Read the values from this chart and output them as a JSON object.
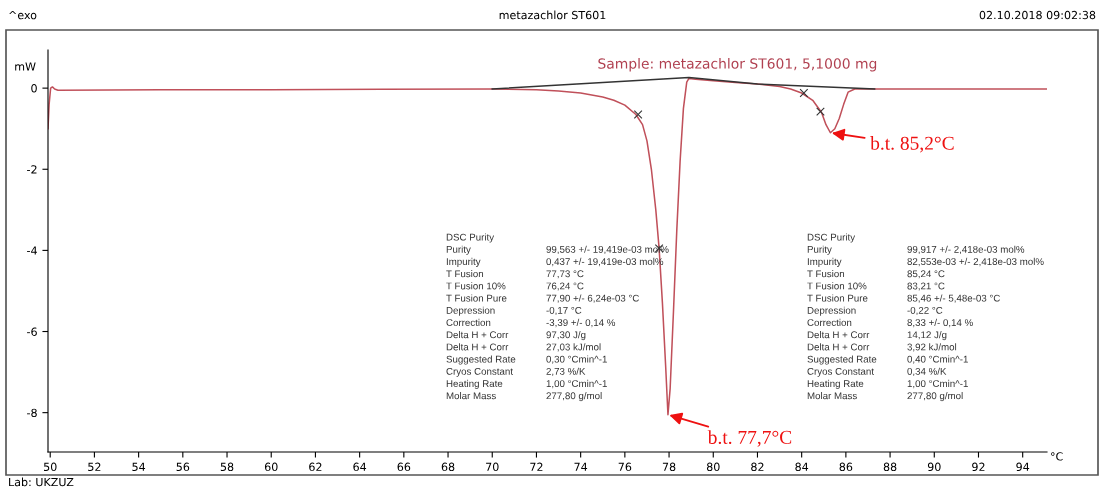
{
  "chart_data": {
    "type": "line",
    "title": "metazachlor ST601",
    "subtitle": "Sample: metazachlor ST601, 5,1000 mg",
    "xlabel": "°C",
    "ylabel": "mW",
    "xlim": [
      49.9,
      95.1
    ],
    "ylim": [
      -8.97,
      0.94
    ],
    "xticks": [
      50,
      52,
      54,
      56,
      58,
      60,
      62,
      64,
      66,
      68,
      70,
      72,
      74,
      76,
      78,
      80,
      82,
      84,
      86,
      88,
      90,
      92,
      94
    ],
    "yticks": [
      -8,
      -6,
      -4,
      -2,
      0
    ],
    "grid": false,
    "legend": false,
    "series": [
      {
        "color": "#c0505a",
        "line_style": "solid",
        "marker": "none",
        "x": [
          49.9,
          49.95,
          50.02,
          50.1,
          50.2,
          50.35,
          55,
          60,
          65,
          70,
          72,
          73,
          74,
          75,
          75.5,
          76,
          76.5,
          76.8,
          77.0,
          77.2,
          77.4,
          77.55,
          77.7,
          77.85,
          77.95,
          78.05,
          78.2,
          78.35,
          78.5,
          78.65,
          78.8,
          78.9,
          79.2,
          80,
          81,
          82,
          83,
          83.5,
          84,
          84.5,
          84.9,
          85.1,
          85.3,
          85.5,
          85.7,
          85.9,
          86.1,
          86.4,
          87,
          90,
          95.1
        ],
        "values": [
          -1.0,
          -0.4,
          0.0,
          0.03,
          -0.02,
          -0.05,
          -0.04,
          -0.04,
          -0.03,
          -0.02,
          -0.04,
          -0.07,
          -0.12,
          -0.22,
          -0.3,
          -0.42,
          -0.65,
          -0.9,
          -1.3,
          -2.0,
          -3.0,
          -3.95,
          -5.3,
          -6.9,
          -8.05,
          -7.4,
          -5.5,
          -3.5,
          -1.8,
          -0.5,
          0.15,
          0.24,
          0.22,
          0.18,
          0.14,
          0.1,
          0.04,
          -0.02,
          -0.12,
          -0.3,
          -0.6,
          -0.9,
          -1.1,
          -1.0,
          -0.75,
          -0.4,
          -0.1,
          -0.02,
          -0.02,
          -0.02,
          -0.02
        ]
      },
      {
        "color": "#333333",
        "line_style": "solid",
        "marker": "none",
        "x": [
          70,
          78.9,
          82,
          87.3
        ],
        "values": [
          -0.02,
          0.26,
          0.1,
          -0.02
        ]
      },
      {
        "type": "scatter",
        "color": "#333333",
        "marker": "cross",
        "x": [
          76.6,
          77.55,
          84.1,
          84.85
        ],
        "values": [
          -0.65,
          -3.95,
          -0.12,
          -0.58
        ]
      }
    ],
    "annotations": [
      "^exo",
      "02.10.2018 09:02:38",
      "Lab: UKZUZ",
      {
        "text": "b.t. 77,7°C",
        "x": 77.95,
        "y": -8.05
      },
      {
        "text": "b.t. 85,2°C",
        "x": 85.3,
        "y": -1.1
      },
      "DSC Purity",
      "Purity",
      "Impurity",
      "T Fusion",
      "T Fusion 10%",
      "T Fusion Pure",
      "Depression",
      "Correction",
      "Delta H + Corr",
      "Delta H + Corr",
      "Suggested Rate",
      "Cryos Constant",
      "Heating Rate",
      "Molar Mass",
      "99,563 +/- 19,419e-03 mol%",
      "0,437 +/- 19,419e-03 mol%",
      "77,73 °C",
      "76,24 °C",
      "77,90 +/- 6,24e-03 °C",
      "-0,17 °C",
      "-3,39 +/- 0,14 %",
      "97,30 J/g",
      "27,03 kJ/mol",
      "0,30 °Cmin^-1",
      "2,73 %/K",
      "1,00 °Cmin^-1",
      "277,80 g/mol",
      "DSC Purity",
      "Purity",
      "Impurity",
      "T Fusion",
      "T Fusion 10%",
      "T Fusion Pure",
      "Depression",
      "Correction",
      "Delta H + Corr",
      "Delta H + Corr",
      "Suggested Rate",
      "Cryos Constant",
      "Heating Rate",
      "Molar Mass",
      "99,917 +/- 2,418e-03 mol%",
      "82,553e-03 +/- 2,418e-03 mol%",
      "85,24 °C",
      "83,21 °C",
      "85,46 +/- 5,48e-03 °C",
      "-0,22 °C",
      "8,33 +/- 0,14 %",
      "14,12 J/g",
      "3,92 kJ/mol",
      "0,40 °Cmin^-1",
      "0,34 %/K",
      "1,00 °Cmin^-1",
      "277,80 g/mol"
    ]
  }
}
